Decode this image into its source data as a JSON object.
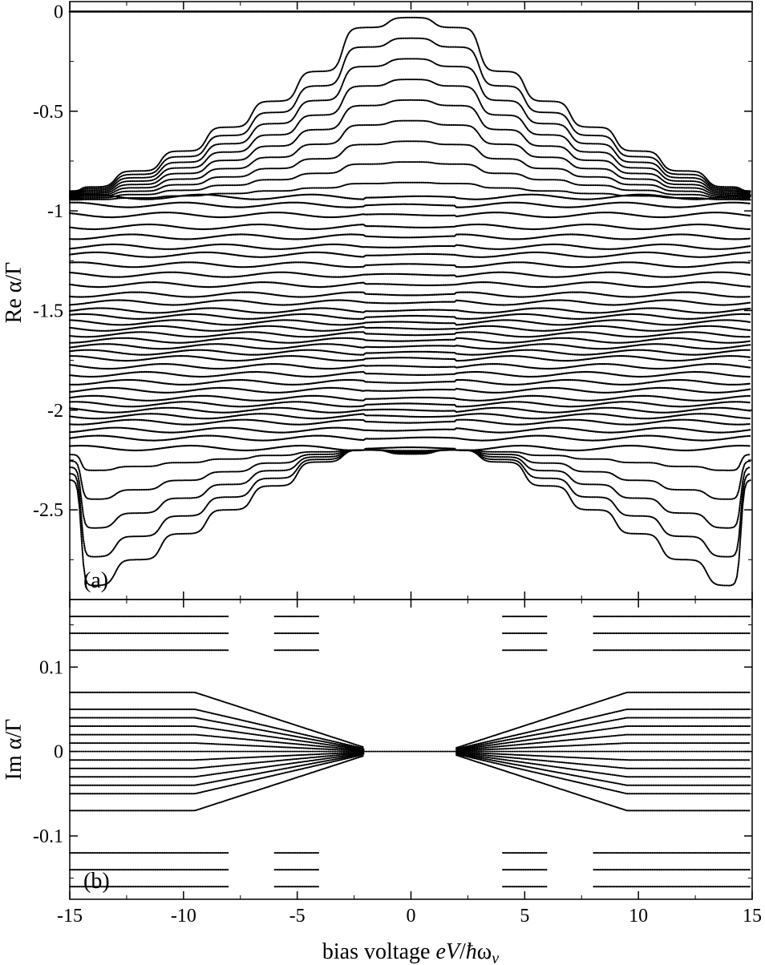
{
  "chart_data": [
    {
      "panel": "(a)",
      "type": "scatter",
      "ylabel": "Re α/Γ",
      "xlabel": "",
      "xlim": [
        -15,
        15
      ],
      "ylim": [
        -2.95,
        0.05
      ],
      "yticks": [
        {
          "value": 0,
          "label": "0"
        },
        {
          "value": -0.5,
          "label": "-0.5"
        },
        {
          "value": -1,
          "label": "-1"
        },
        {
          "value": -1.5,
          "label": "-1.5"
        },
        {
          "value": -2,
          "label": "-2"
        },
        {
          "value": -2.5,
          "label": "-2.5"
        }
      ],
      "constant_branches": [
        0.0,
        -0.93,
        -0.97,
        -1.02,
        -1.08,
        -1.13,
        -1.18,
        -1.22,
        -1.27,
        -1.32,
        -1.37,
        -1.42,
        -1.46,
        -1.5,
        -1.53,
        -1.56,
        -1.59,
        -1.62,
        -1.65,
        -1.68,
        -1.71,
        -1.74,
        -1.78,
        -1.82,
        -1.86,
        -1.9,
        -1.94,
        -1.97,
        -2.0,
        -2.03,
        -2.06,
        -2.1,
        -2.14,
        -2.19
      ],
      "envelope_upper": {
        "x": [
          -15,
          -14,
          -12,
          -10,
          -8,
          -6,
          -4,
          -2,
          0,
          2,
          4,
          6,
          8,
          10,
          12,
          14,
          15
        ],
        "y": [
          -0.9,
          -0.88,
          -0.8,
          -0.7,
          -0.58,
          -0.45,
          -0.3,
          -0.08,
          -0.03,
          -0.08,
          -0.3,
          -0.45,
          -0.58,
          -0.7,
          -0.8,
          -0.88,
          -0.9
        ]
      },
      "envelope_lower": {
        "x": [
          -15,
          -14,
          -12,
          -10,
          -8,
          -6,
          -4,
          -2,
          0,
          2,
          4,
          6,
          8,
          10,
          12,
          14,
          15
        ],
        "y": [
          -2.35,
          -2.88,
          -2.75,
          -2.62,
          -2.5,
          -2.38,
          -2.26,
          -2.2,
          -2.22,
          -2.2,
          -2.26,
          -2.38,
          -2.5,
          -2.62,
          -2.75,
          -2.88,
          -2.35
        ]
      }
    },
    {
      "panel": "(b)",
      "type": "scatter",
      "ylabel": "Im α/Γ",
      "xlabel": "bias voltage eV/ħων",
      "xlim": [
        -15,
        15
      ],
      "ylim": [
        -0.175,
        0.18
      ],
      "yticks": [
        {
          "value": 0.1,
          "label": "0.1"
        },
        {
          "value": 0,
          "label": "0"
        },
        {
          "value": -0.1,
          "label": "-0.1"
        }
      ],
      "xticks": [
        {
          "value": -15,
          "label": "-15"
        },
        {
          "value": -10,
          "label": "-10"
        },
        {
          "value": -5,
          "label": "-5"
        },
        {
          "value": 0,
          "label": "0"
        },
        {
          "value": 5,
          "label": "5"
        },
        {
          "value": 10,
          "label": "10"
        },
        {
          "value": 15,
          "label": "15"
        }
      ],
      "branch_magnitudes": [
        0.16,
        0.14,
        0.12,
        0.07,
        0.05,
        0.04,
        0.03,
        0.02,
        0.01,
        0.0
      ],
      "zero_segment": [
        -2,
        2
      ]
    }
  ],
  "xaxis_label": {
    "prefix": "bias voltage ",
    "italic_e": "e",
    "italic_v": "V",
    "slash": "/",
    "hbar": "ħ",
    "omega": "ω",
    "sub": "ν"
  }
}
